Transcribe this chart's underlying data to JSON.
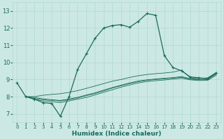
{
  "xlabel": "Humidex (Indice chaleur)",
  "bg_color": "#cce8e4",
  "line_color": "#1a6b5a",
  "grid_color": "#b0d8d0",
  "xlim": [
    -0.5,
    23.5
  ],
  "ylim": [
    6.5,
    13.5
  ],
  "xticks": [
    0,
    1,
    2,
    3,
    4,
    5,
    6,
    7,
    8,
    9,
    10,
    11,
    12,
    13,
    14,
    15,
    16,
    17,
    18,
    19,
    20,
    21,
    22,
    23
  ],
  "yticks": [
    7,
    8,
    9,
    10,
    11,
    12,
    13
  ],
  "main_line": {
    "x": [
      0,
      1,
      2,
      3,
      4,
      5,
      6,
      7,
      8,
      9,
      10,
      11,
      12,
      13,
      14,
      15,
      16,
      17,
      18,
      19,
      20,
      21,
      22,
      23
    ],
    "y": [
      8.8,
      8.0,
      7.85,
      7.65,
      7.6,
      6.85,
      8.0,
      9.6,
      10.5,
      11.4,
      12.0,
      12.15,
      12.2,
      12.05,
      12.4,
      12.85,
      12.75,
      10.4,
      9.7,
      9.5,
      9.15,
      9.1,
      9.05,
      9.4
    ]
  },
  "flat_lines": [
    {
      "x": [
        1,
        2,
        3,
        4,
        5,
        6,
        7,
        8,
        9,
        10,
        11,
        12,
        13,
        14,
        15,
        16,
        17,
        18,
        19,
        20,
        21,
        22,
        23
      ],
      "y": [
        8.0,
        7.85,
        7.75,
        7.7,
        7.65,
        7.75,
        7.85,
        7.95,
        8.1,
        8.25,
        8.4,
        8.55,
        8.68,
        8.8,
        8.88,
        8.93,
        8.97,
        9.02,
        9.07,
        8.98,
        8.94,
        8.95,
        9.25
      ]
    },
    {
      "x": [
        1,
        2,
        3,
        4,
        5,
        6,
        7,
        8,
        9,
        10,
        11,
        12,
        13,
        14,
        15,
        16,
        17,
        18,
        19,
        20,
        21,
        22,
        23
      ],
      "y": [
        8.0,
        7.9,
        7.82,
        7.78,
        7.74,
        7.82,
        7.92,
        8.05,
        8.18,
        8.33,
        8.5,
        8.63,
        8.76,
        8.87,
        8.95,
        9.0,
        9.04,
        9.08,
        9.13,
        9.02,
        8.98,
        9.0,
        9.32
      ]
    },
    {
      "x": [
        1,
        2,
        3,
        4,
        5,
        6,
        7,
        8,
        9,
        10,
        11,
        12,
        13,
        14,
        15,
        16,
        17,
        18,
        19,
        20,
        21,
        22,
        23
      ],
      "y": [
        8.0,
        7.95,
        7.87,
        7.82,
        7.78,
        7.86,
        7.96,
        8.1,
        8.22,
        8.38,
        8.53,
        8.67,
        8.8,
        8.91,
        8.98,
        9.03,
        9.07,
        9.11,
        9.17,
        9.05,
        9.0,
        9.03,
        9.35
      ]
    },
    {
      "x": [
        1,
        2,
        3,
        4,
        5,
        6,
        7,
        8,
        9,
        10,
        11,
        12,
        13,
        14,
        15,
        16,
        17,
        18,
        19,
        20,
        21,
        22,
        23
      ],
      "y": [
        8.0,
        8.0,
        8.08,
        8.13,
        8.17,
        8.25,
        8.35,
        8.48,
        8.62,
        8.76,
        8.9,
        9.0,
        9.12,
        9.22,
        9.29,
        9.34,
        9.38,
        9.43,
        9.55,
        9.1,
        9.05,
        9.1,
        9.4
      ]
    }
  ]
}
